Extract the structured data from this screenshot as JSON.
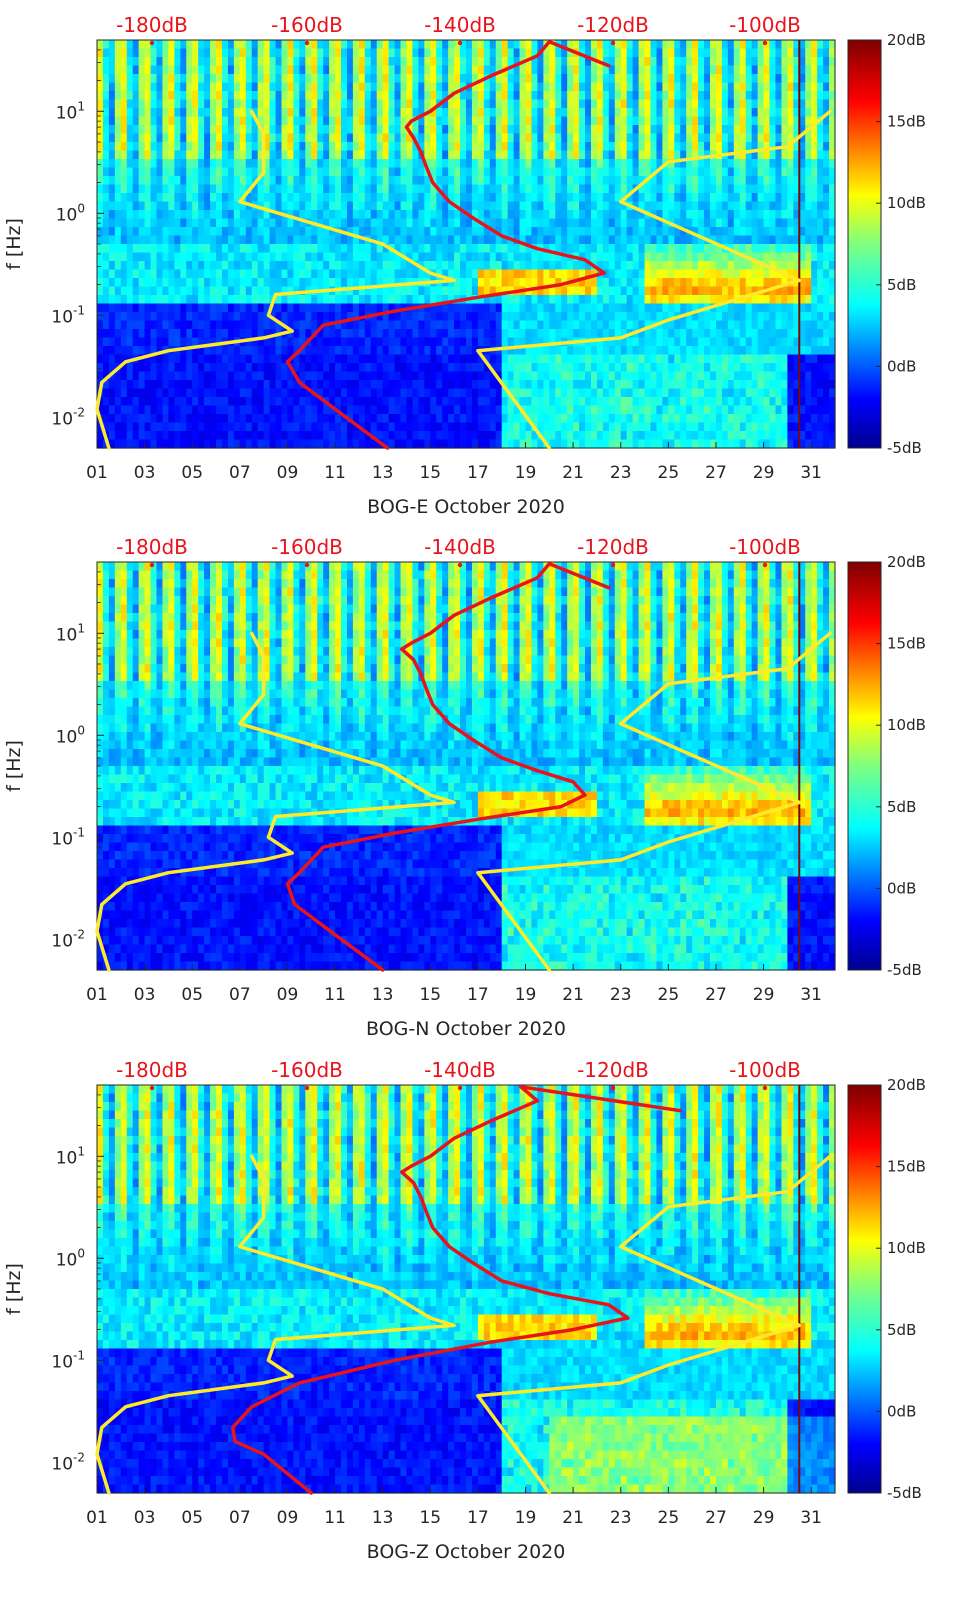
{
  "colors": {
    "model_curve": "#ffea2a",
    "noise_curve": "#e8141c",
    "top_axis": "#e8141c",
    "text": "#262626"
  },
  "colorbar": {
    "ticks": [
      "20dB",
      "15dB",
      "10dB",
      "5dB",
      "0dB",
      "-5dB"
    ],
    "range": [
      -5,
      20
    ],
    "colormap": "jet"
  },
  "chart_data": [
    {
      "type": "heatmap",
      "xlabel": "BOG-E October 2020",
      "ylabel": "f [Hz]",
      "xticks": [
        "01",
        "03",
        "05",
        "07",
        "09",
        "11",
        "13",
        "15",
        "17",
        "19",
        "21",
        "23",
        "25",
        "27",
        "29",
        "31"
      ],
      "yticks": [
        "10-2",
        "10-1",
        "100",
        "101"
      ],
      "top_ticks": [
        "-180dB",
        "-160dB",
        "-140dB",
        "-120dB",
        "-100dB"
      ],
      "xlim": [
        1,
        32
      ],
      "ylim": [
        0.005,
        50
      ],
      "yscale": "log",
      "series": [
        {
          "name": "",
          "color": "model_curve",
          "x": [
            1.5,
            1.0,
            1.2,
            2.2,
            4.0,
            8.0,
            9.2,
            8.2,
            8.5,
            16.0,
            15.0,
            13.0,
            7.0,
            8.0,
            8.0,
            7.5
          ],
          "y": [
            0.005,
            0.012,
            0.022,
            0.035,
            0.045,
            0.06,
            0.07,
            0.1,
            0.16,
            0.22,
            0.26,
            0.5,
            1.3,
            2.5,
            6.0,
            10.0
          ]
        },
        {
          "name": "",
          "color": "model_curve",
          "x": [
            20.0,
            17.0,
            23.0,
            25.0,
            30.5,
            23.0,
            25.0,
            30.0,
            31.8
          ],
          "y": [
            0.005,
            0.045,
            0.06,
            0.09,
            0.22,
            1.3,
            3.2,
            4.5,
            10.0
          ]
        },
        {
          "name": "",
          "color": "noise_curve",
          "x": [
            13.2,
            11.0,
            9.5,
            9.0,
            9.5,
            10.5,
            13.5,
            17.0,
            20.5,
            22.3,
            21.5,
            19.5,
            18.0,
            16.8,
            15.8,
            15.1,
            14.8,
            14.6,
            14.3,
            14.0,
            14.2,
            15.0,
            16.0,
            17.5,
            19.5,
            20.0,
            22.5
          ],
          "y": [
            0.005,
            0.012,
            0.022,
            0.035,
            0.045,
            0.08,
            0.11,
            0.15,
            0.2,
            0.26,
            0.35,
            0.45,
            0.6,
            0.9,
            1.3,
            2.0,
            3.0,
            4.0,
            5.5,
            7.0,
            8.0,
            10.0,
            15.0,
            22.0,
            35.0,
            48.0,
            28.0
          ]
        }
      ]
    },
    {
      "type": "heatmap",
      "xlabel": "BOG-N October 2020",
      "ylabel": "f [Hz]",
      "xticks": [
        "01",
        "03",
        "05",
        "07",
        "09",
        "11",
        "13",
        "15",
        "17",
        "19",
        "21",
        "23",
        "25",
        "27",
        "29",
        "31"
      ],
      "yticks": [
        "10-2",
        "10-1",
        "100",
        "101"
      ],
      "top_ticks": [
        "-180dB",
        "-160dB",
        "-140dB",
        "-120dB",
        "-100dB"
      ],
      "xlim": [
        1,
        32
      ],
      "ylim": [
        0.005,
        50
      ],
      "yscale": "log",
      "series": [
        {
          "name": "",
          "color": "model_curve",
          "x": [
            1.5,
            1.0,
            1.2,
            2.2,
            4.0,
            8.0,
            9.2,
            8.2,
            8.5,
            16.0,
            15.0,
            13.0,
            7.0,
            8.0,
            8.0,
            7.5
          ],
          "y": [
            0.005,
            0.012,
            0.022,
            0.035,
            0.045,
            0.06,
            0.07,
            0.1,
            0.16,
            0.22,
            0.26,
            0.5,
            1.3,
            2.5,
            6.0,
            10.0
          ]
        },
        {
          "name": "",
          "color": "model_curve",
          "x": [
            20.0,
            17.0,
            23.0,
            25.0,
            30.5,
            23.0,
            25.0,
            30.0,
            31.8
          ],
          "y": [
            0.005,
            0.045,
            0.06,
            0.09,
            0.22,
            1.3,
            3.2,
            4.5,
            10.0
          ]
        },
        {
          "name": "",
          "color": "noise_curve",
          "x": [
            13.0,
            10.8,
            9.3,
            9.0,
            9.5,
            10.5,
            13.5,
            17.0,
            20.5,
            21.5,
            21.0,
            19.5,
            18.0,
            16.8,
            15.8,
            15.1,
            14.8,
            14.6,
            14.3,
            13.8,
            14.2,
            15.0,
            16.0,
            17.5,
            19.5,
            20.0,
            22.5
          ],
          "y": [
            0.005,
            0.012,
            0.022,
            0.035,
            0.045,
            0.08,
            0.11,
            0.15,
            0.2,
            0.26,
            0.35,
            0.45,
            0.6,
            0.9,
            1.3,
            2.0,
            3.0,
            4.0,
            5.5,
            7.0,
            8.0,
            10.0,
            15.0,
            22.0,
            35.0,
            48.0,
            28.0
          ]
        }
      ]
    },
    {
      "type": "heatmap",
      "xlabel": "BOG-Z October 2020",
      "ylabel": "f [Hz]",
      "xticks": [
        "01",
        "03",
        "05",
        "07",
        "09",
        "11",
        "13",
        "15",
        "17",
        "19",
        "21",
        "23",
        "25",
        "27",
        "29",
        "31"
      ],
      "yticks": [
        "10-2",
        "10-1",
        "100",
        "101"
      ],
      "top_ticks": [
        "-180dB",
        "-160dB",
        "-140dB",
        "-120dB",
        "-100dB"
      ],
      "xlim": [
        1,
        32
      ],
      "ylim": [
        0.005,
        50
      ],
      "yscale": "log",
      "series": [
        {
          "name": "",
          "color": "model_curve",
          "x": [
            1.5,
            1.0,
            1.2,
            2.2,
            4.0,
            8.0,
            9.2,
            8.2,
            8.5,
            16.0,
            15.0,
            13.0,
            7.0,
            8.0,
            8.0,
            7.5
          ],
          "y": [
            0.005,
            0.012,
            0.022,
            0.035,
            0.045,
            0.06,
            0.07,
            0.1,
            0.16,
            0.22,
            0.26,
            0.5,
            1.3,
            2.5,
            6.0,
            10.0
          ]
        },
        {
          "name": "",
          "color": "model_curve",
          "x": [
            20.0,
            17.0,
            23.0,
            25.0,
            30.5,
            23.0,
            25.0,
            30.0,
            31.8
          ],
          "y": [
            0.005,
            0.045,
            0.06,
            0.09,
            0.22,
            1.3,
            3.2,
            4.5,
            10.0
          ]
        },
        {
          "name": "",
          "color": "noise_curve",
          "x": [
            10.0,
            8.0,
            6.8,
            6.7,
            7.5,
            9.5,
            13.5,
            17.5,
            21.0,
            23.3,
            22.5,
            20.0,
            18.0,
            16.8,
            15.8,
            15.1,
            14.8,
            14.6,
            14.3,
            13.8,
            14.2,
            15.0,
            16.0,
            17.5,
            19.5,
            18.8,
            25.5
          ],
          "y": [
            0.005,
            0.012,
            0.016,
            0.022,
            0.035,
            0.06,
            0.1,
            0.15,
            0.2,
            0.26,
            0.35,
            0.45,
            0.6,
            0.9,
            1.3,
            2.0,
            3.0,
            4.0,
            5.5,
            7.0,
            8.0,
            10.0,
            15.0,
            22.0,
            35.0,
            48.0,
            28.0
          ]
        }
      ]
    }
  ]
}
